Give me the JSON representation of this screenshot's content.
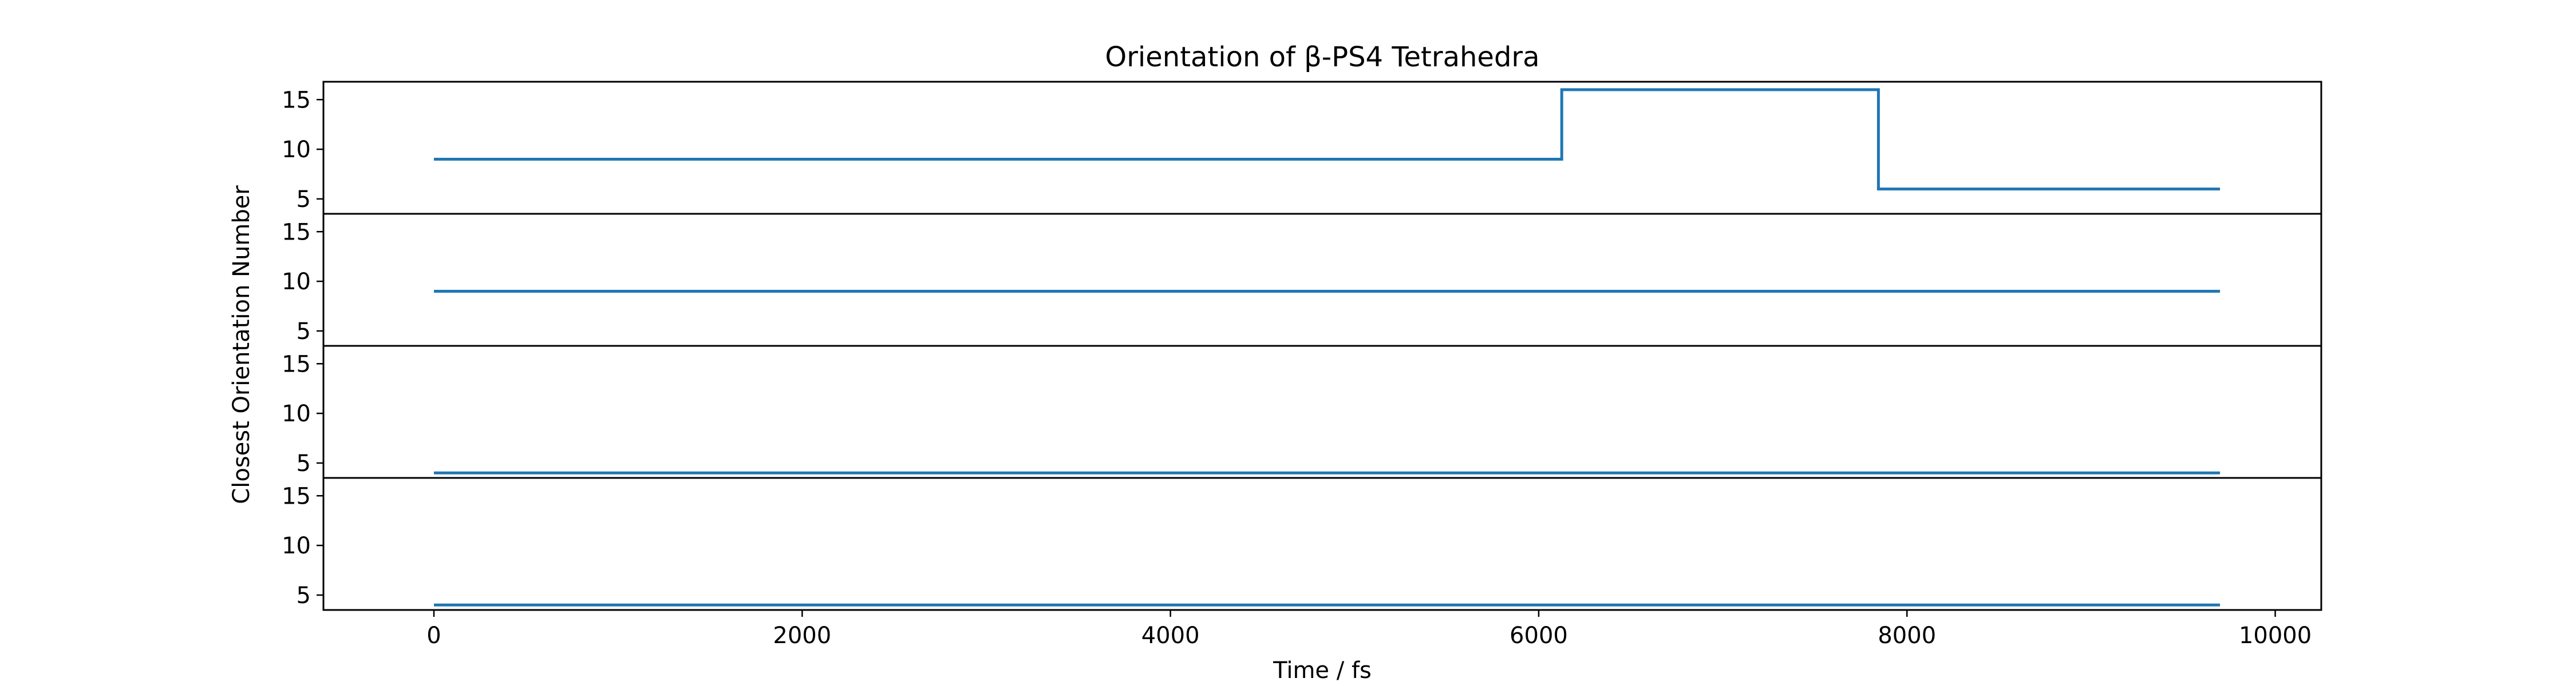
{
  "chart_data": {
    "type": "line",
    "style": "step",
    "title": "Orientation of β-PS4 Tetrahedra",
    "xlabel": "Time / fs",
    "ylabel": "Closest Orientation Number",
    "xlim": [
      -600,
      10250
    ],
    "xticks": [
      0,
      2000,
      4000,
      6000,
      8000,
      10000
    ],
    "ylim": [
      3.5,
      16.8
    ],
    "yticks": [
      5,
      10,
      15
    ],
    "line_color": "#1f77b4",
    "grid": false,
    "panels": [
      {
        "x": [
          0,
          6125,
          6125,
          7845,
          7845,
          9700
        ],
        "y": [
          9,
          9,
          16,
          16,
          6,
          6
        ]
      },
      {
        "x": [
          0,
          9700
        ],
        "y": [
          9,
          9
        ]
      },
      {
        "x": [
          0,
          9700
        ],
        "y": [
          4,
          4
        ]
      },
      {
        "x": [
          0,
          9700
        ],
        "y": [
          4,
          4
        ]
      }
    ]
  }
}
